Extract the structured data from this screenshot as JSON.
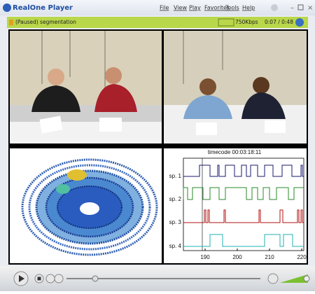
{
  "window": {
    "title": "RealOne Player",
    "menu": [
      "File",
      "View",
      "Play",
      "Favorites",
      "Tools",
      "Help"
    ]
  },
  "status": {
    "state": "(Paused) segmentation",
    "bitrate": "750Kbps",
    "time": "0:07 / 0:48"
  },
  "plot": {
    "title": "timecode 00:03:18:11",
    "rows": [
      "sp. 1",
      "sp. 2",
      "sp. 3",
      "sp. 4"
    ],
    "xticks": [
      190,
      200,
      210,
      220
    ]
  }
}
